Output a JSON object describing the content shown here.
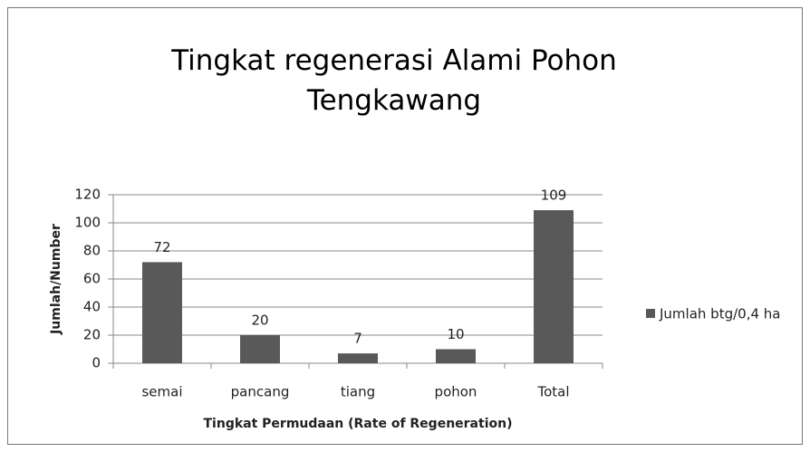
{
  "chart_data": {
    "type": "bar",
    "title": "Tingkat regenerasi Alami Pohon Tengkawang",
    "x_label": "Tingkat Permudaan (Rate of Regeneration)",
    "y_label": "Jumlah/Number",
    "categories": [
      "semai",
      "pancang",
      "tiang",
      "pohon",
      "Total"
    ],
    "series": [
      {
        "name": "Jumlah btg/0,4 ha",
        "color": "#595959",
        "values": [
          72,
          20,
          7,
          10,
          109
        ]
      }
    ],
    "ylim": [
      0,
      120
    ],
    "yticks": [
      0,
      20,
      40,
      60,
      80,
      100,
      120
    ],
    "grid": true,
    "legend": "right"
  }
}
